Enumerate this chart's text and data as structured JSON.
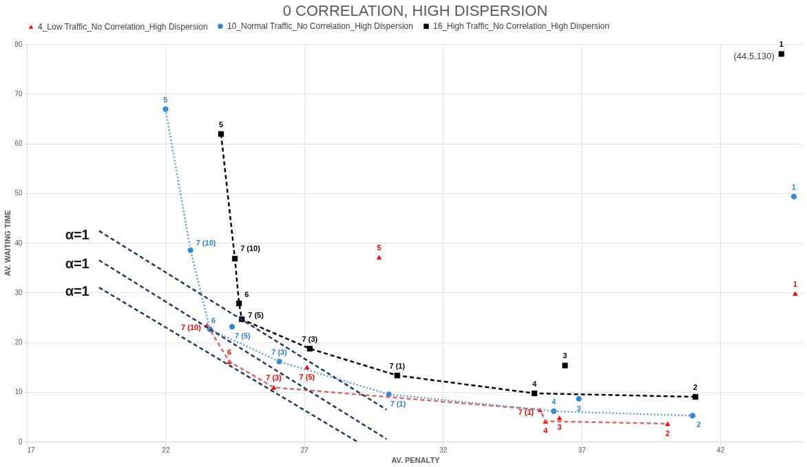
{
  "chart_data": {
    "type": "scatter",
    "title": "0 CORRELATION, HIGH DISPERSION",
    "xlabel": "AV. PENALTY",
    "ylabel": "AV. WAITING TIME",
    "xlim": [
      17,
      45
    ],
    "xticks": [
      17,
      22,
      27,
      32,
      37,
      42
    ],
    "ylim": [
      0,
      80
    ],
    "yticks": [
      0,
      10,
      20,
      30,
      40,
      50,
      60,
      70,
      80
    ],
    "grid": true,
    "legend": "top",
    "series": [
      {
        "name": "4_Low Traffic_No Correlation_High Dispersion",
        "color": "#ff0000",
        "marker": "triangle",
        "x": [
          44.7,
          40.1,
          36.2,
          35.7,
          29.7,
          24.3,
          23.5,
          25.9,
          27.1,
          35.5
        ],
        "values": [
          29.8,
          3.6,
          4.8,
          4.1,
          37.1,
          16.1,
          23.4,
          10.9,
          15.0,
          6.4
        ]
      },
      {
        "name": "10_Normal Traffic_No Correlation_High Dispersion",
        "color": "#2e86d6",
        "marker": "circle",
        "x": [
          44.65,
          41.0,
          36.9,
          36.0,
          22.0,
          23.6,
          22.9,
          24.4,
          26.1,
          30.05
        ],
        "values": [
          49.3,
          5.2,
          8.6,
          6.1,
          66.9,
          22.6,
          38.5,
          23.1,
          16.1,
          9.5
        ]
      },
      {
        "name": "16_High Traffic_No Correlation_High Dispersion",
        "color": "#000000",
        "marker": "square",
        "x": [
          44.2,
          41.1,
          36.4,
          35.3,
          24.0,
          24.65,
          24.5,
          24.75,
          27.2,
          30.35
        ],
        "values": [
          78,
          9.0,
          15.3,
          9.7,
          61.9,
          27.8,
          36.8,
          24.6,
          18.7,
          13.3
        ]
      },
      {
        "type": "line",
        "color": "#e06666",
        "line_style": "dashed",
        "x": [
          23.5,
          24.3,
          25.9,
          35.5,
          35.7,
          40.1
        ],
        "values": [
          23.4,
          16.1,
          10.9,
          6.4,
          4.1,
          3.6
        ]
      },
      {
        "type": "line",
        "color": "#5b9bd5",
        "line_style": "dotted",
        "x": [
          22.0,
          22.9,
          23.6,
          26.1,
          30.05,
          36.0,
          41.0
        ],
        "values": [
          66.9,
          38.5,
          22.6,
          16.1,
          9.5,
          6.1,
          5.2
        ]
      },
      {
        "type": "line",
        "color": "#000000",
        "line_style": "dashed",
        "x": [
          24.0,
          24.5,
          24.65,
          24.75,
          27.2,
          30.35,
          35.3,
          41.1
        ],
        "values": [
          61.9,
          36.8,
          27.8,
          24.6,
          18.7,
          13.3,
          9.7,
          9.0
        ]
      },
      {
        "type": "line",
        "color": "#1f3864",
        "line_style": "dashed",
        "x": [
          19.6,
          29.97
        ],
        "values": [
          42.4,
          6.4
        ]
      },
      {
        "type": "line",
        "color": "#1f3864",
        "line_style": "dashed",
        "x": [
          19.6,
          29.97
        ],
        "values": [
          36.5,
          0.5
        ]
      },
      {
        "type": "line",
        "color": "#1f3864",
        "line_style": "dashed",
        "x": [
          19.6,
          28.9
        ],
        "values": [
          31.0,
          0
        ]
      }
    ],
    "annotations": [
      {
        "text": "α=1",
        "x": 19.6,
        "y": 42.4
      },
      {
        "text": "α=1",
        "x": 19.6,
        "y": 36.5
      },
      {
        "text": "α=1",
        "x": 19.6,
        "y": 31.0
      },
      {
        "text": "(44.5,130)",
        "x": 44.2,
        "y": 78
      },
      {
        "text": "1",
        "x": 44.7,
        "y": 29.8
      },
      {
        "text": "2",
        "x": 40.1,
        "y": 3.6
      },
      {
        "text": "3",
        "x": 36.2,
        "y": 4.8
      },
      {
        "text": "4",
        "x": 35.7,
        "y": 4.1
      },
      {
        "text": "5",
        "x": 29.7,
        "y": 37.1
      },
      {
        "text": "6",
        "x": 24.3,
        "y": 16.1
      },
      {
        "text": "7 (10)",
        "x": 23.5,
        "y": 23.4
      },
      {
        "text": "7 (3)",
        "x": 25.9,
        "y": 10.9
      },
      {
        "text": "7 (5)",
        "x": 27.1,
        "y": 15.0
      },
      {
        "text": "7 (1)",
        "x": 35.5,
        "y": 6.4
      },
      {
        "text": "1",
        "x": 44.65,
        "y": 49.3
      },
      {
        "text": "2",
        "x": 41.0,
        "y": 5.2
      },
      {
        "text": "3",
        "x": 36.9,
        "y": 8.6
      },
      {
        "text": "4",
        "x": 36.0,
        "y": 6.1
      },
      {
        "text": "5",
        "x": 22.0,
        "y": 66.9
      },
      {
        "text": "6",
        "x": 23.6,
        "y": 22.6
      },
      {
        "text": "7 (10)",
        "x": 22.9,
        "y": 38.5
      },
      {
        "text": "7 (5)",
        "x": 24.4,
        "y": 23.1
      },
      {
        "text": "7 (3)",
        "x": 26.1,
        "y": 16.1
      },
      {
        "text": "7 (1)",
        "x": 30.05,
        "y": 9.5
      },
      {
        "text": "1",
        "x": 44.2,
        "y": 78
      },
      {
        "text": "2",
        "x": 41.1,
        "y": 9.0
      },
      {
        "text": "3",
        "x": 36.4,
        "y": 15.3
      },
      {
        "text": "4",
        "x": 35.3,
        "y": 9.7
      },
      {
        "text": "5",
        "x": 24.0,
        "y": 61.9
      },
      {
        "text": "6",
        "x": 24.65,
        "y": 27.8
      },
      {
        "text": "7 (10)",
        "x": 24.5,
        "y": 36.8
      },
      {
        "text": "7 (5)",
        "x": 24.75,
        "y": 24.6
      },
      {
        "text": "7 (3)",
        "x": 27.2,
        "y": 18.7
      },
      {
        "text": "7 (1)",
        "x": 30.35,
        "y": 13.3
      }
    ]
  }
}
